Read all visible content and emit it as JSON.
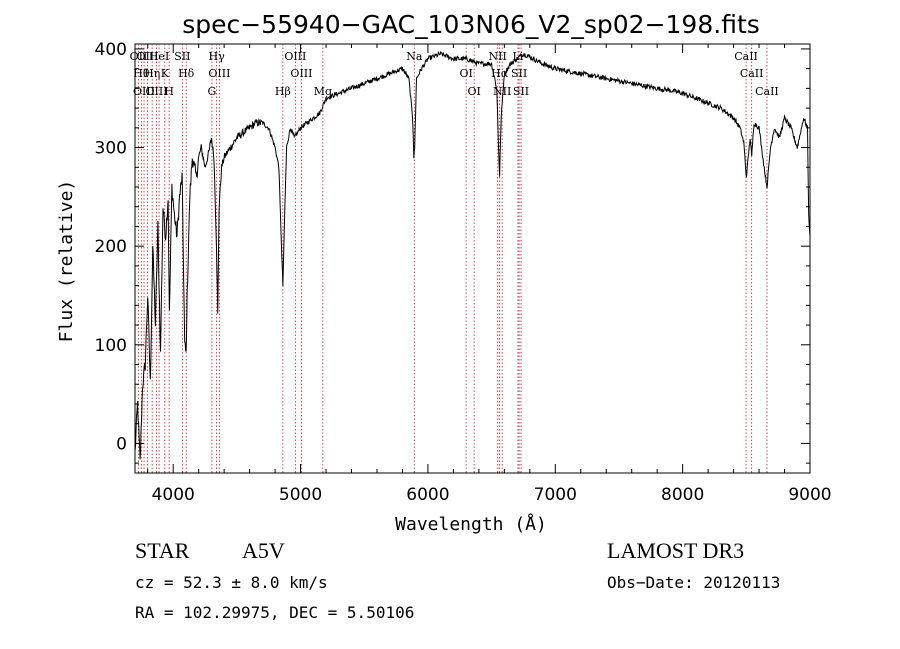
{
  "chart_data": {
    "type": "line",
    "title": "spec−55940−GAC_103N06_V2_sp02−198.fits",
    "xlabel": "Wavelength (Å)",
    "ylabel": "Flux (relative)",
    "xlim": [
      3700,
      9000
    ],
    "ylim": [
      -30,
      405
    ],
    "x_ticks": [
      4000,
      5000,
      6000,
      7000,
      8000,
      9000
    ],
    "y_ticks": [
      0,
      100,
      200,
      300,
      400
    ],
    "series": [
      {
        "name": "flux",
        "x": [
          3700,
          3720,
          3740,
          3760,
          3780,
          3800,
          3820,
          3840,
          3860,
          3880,
          3900,
          3920,
          3940,
          3960,
          3970,
          3990,
          4010,
          4030,
          4050,
          4070,
          4090,
          4101,
          4110,
          4130,
          4150,
          4180,
          4200,
          4220,
          4250,
          4280,
          4300,
          4320,
          4340,
          4350,
          4360,
          4380,
          4400,
          4450,
          4500,
          4550,
          4600,
          4650,
          4700,
          4750,
          4800,
          4830,
          4850,
          4861,
          4875,
          4890,
          4920,
          4950,
          5000,
          5050,
          5100,
          5150,
          5200,
          5300,
          5400,
          5500,
          5600,
          5700,
          5800,
          5850,
          5880,
          5890,
          5896,
          5910,
          5950,
          6000,
          6100,
          6200,
          6300,
          6400,
          6500,
          6540,
          6555,
          6563,
          6575,
          6600,
          6650,
          6700,
          6750,
          6800,
          6900,
          7000,
          7200,
          7400,
          7600,
          7800,
          7900,
          8000,
          8100,
          8200,
          8300,
          8400,
          8450,
          8480,
          8500,
          8530,
          8542,
          8560,
          8600,
          8640,
          8662,
          8690,
          8720,
          8760,
          8800,
          8850,
          8900,
          8950,
          8980,
          8990,
          9000
        ],
        "values": [
          -10,
          40,
          -20,
          60,
          80,
          150,
          60,
          200,
          120,
          220,
          90,
          240,
          210,
          250,
          130,
          260,
          230,
          210,
          250,
          270,
          100,
          90,
          150,
          250,
          290,
          270,
          290,
          300,
          280,
          295,
          310,
          290,
          200,
          130,
          240,
          280,
          290,
          300,
          310,
          315,
          320,
          325,
          325,
          320,
          300,
          280,
          200,
          160,
          230,
          300,
          320,
          310,
          320,
          325,
          330,
          335,
          350,
          355,
          360,
          365,
          370,
          375,
          380,
          370,
          330,
          290,
          300,
          370,
          380,
          390,
          395,
          390,
          390,
          385,
          385,
          360,
          300,
          270,
          330,
          375,
          385,
          390,
          395,
          392,
          385,
          380,
          375,
          370,
          365,
          360,
          358,
          355,
          350,
          345,
          340,
          330,
          320,
          305,
          270,
          310,
          290,
          325,
          320,
          280,
          260,
          300,
          320,
          310,
          330,
          320,
          300,
          330,
          320,
          230,
          210
        ]
      }
    ],
    "line_markers": [
      {
        "wave": 3727,
        "label": "OII"
      },
      {
        "wave": 3750,
        "label": "Hθ"
      },
      {
        "wave": 3771,
        "label": "OIII"
      },
      {
        "wave": 3798,
        "label": "OIII"
      },
      {
        "wave": 3835,
        "label": "Hη"
      },
      {
        "wave": 3869,
        "label": "OIII"
      },
      {
        "wave": 3889,
        "label": "HeI"
      },
      {
        "wave": 3934,
        "label": "K"
      },
      {
        "wave": 3968,
        "label": "H"
      },
      {
        "wave": 4072,
        "label": "SII"
      },
      {
        "wave": 4102,
        "label": "Hδ"
      },
      {
        "wave": 4304,
        "label": "G"
      },
      {
        "wave": 4341,
        "label": "Hγ"
      },
      {
        "wave": 4363,
        "label": "OIII"
      },
      {
        "wave": 4861,
        "label": "Hβ"
      },
      {
        "wave": 4959,
        "label": "OIII"
      },
      {
        "wave": 5007,
        "label": "OIII"
      },
      {
        "wave": 5175,
        "label": "Mg"
      },
      {
        "wave": 5893,
        "label": "Na"
      },
      {
        "wave": 6300,
        "label": "OI"
      },
      {
        "wave": 6363,
        "label": "OI"
      },
      {
        "wave": 6548,
        "label": "NII"
      },
      {
        "wave": 6563,
        "label": "Hα"
      },
      {
        "wave": 6583,
        "label": "NII"
      },
      {
        "wave": 6707,
        "label": "Li"
      },
      {
        "wave": 6716,
        "label": "SII"
      },
      {
        "wave": 6731,
        "label": "SII"
      },
      {
        "wave": 8498,
        "label": "CaII"
      },
      {
        "wave": 8542,
        "label": "CaII"
      },
      {
        "wave": 8662,
        "label": "CaII"
      }
    ],
    "marker_color": "#b22222",
    "line_color": "#000000"
  },
  "info": {
    "object_class": "STAR",
    "subclass": "A5V",
    "survey": "LAMOST DR3",
    "cz": "cz = 52.3 ± 8.0 km/s",
    "obs_date": "Obs−Date: 20120113",
    "coords": "RA = 102.29975, DEC =   5.50106"
  }
}
